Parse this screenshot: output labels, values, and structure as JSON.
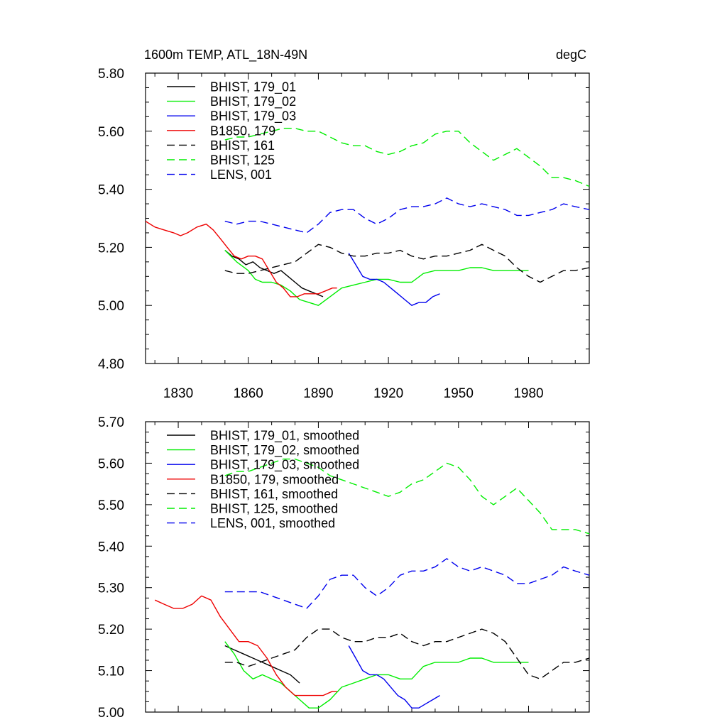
{
  "chart_data": [
    {
      "type": "line",
      "title": "1600m TEMP, ATL_18N-49N",
      "units": "degC",
      "xlabel": "",
      "ylabel": "",
      "xlim": [
        1816,
        2006
      ],
      "ylim": [
        4.8,
        5.8
      ],
      "xticks": [
        1830,
        1860,
        1890,
        1920,
        1950,
        1980
      ],
      "xtick_labels": [
        "1830",
        "1860",
        "1890",
        "1920",
        "1950",
        "1980"
      ],
      "yticks": [
        4.8,
        5.0,
        5.2,
        5.4,
        5.6,
        5.8
      ],
      "ytick_labels": [
        "4.80",
        "5.00",
        "5.20",
        "5.40",
        "5.60",
        "5.80"
      ],
      "legend_position": "top-left",
      "series": [
        {
          "name": "BHIST, 179_01",
          "color": "#000000",
          "dash": "solid",
          "x": [
            1850,
            1853,
            1856,
            1859,
            1862,
            1865,
            1868,
            1871,
            1874,
            1877,
            1880,
            1883,
            1886,
            1889,
            1892
          ],
          "values": [
            5.19,
            5.17,
            5.16,
            5.14,
            5.15,
            5.13,
            5.12,
            5.11,
            5.12,
            5.1,
            5.08,
            5.06,
            5.05,
            5.04,
            5.03
          ]
        },
        {
          "name": "BHIST, 179_02",
          "color": "#00ee00",
          "dash": "solid",
          "x": [
            1850,
            1855,
            1860,
            1863,
            1866,
            1870,
            1874,
            1878,
            1882,
            1886,
            1890,
            1895,
            1900,
            1905,
            1910,
            1915,
            1920,
            1925,
            1930,
            1935,
            1940,
            1945,
            1950,
            1955,
            1960,
            1965,
            1970,
            1975,
            1980
          ],
          "values": [
            5.19,
            5.15,
            5.12,
            5.09,
            5.08,
            5.08,
            5.07,
            5.05,
            5.02,
            5.01,
            5.0,
            5.03,
            5.06,
            5.07,
            5.08,
            5.09,
            5.09,
            5.08,
            5.08,
            5.11,
            5.12,
            5.12,
            5.12,
            5.13,
            5.13,
            5.12,
            5.12,
            5.12,
            5.12
          ]
        },
        {
          "name": "BHIST, 179_03",
          "color": "#0000ee",
          "dash": "solid",
          "x": [
            1903,
            1906,
            1909,
            1912,
            1915,
            1918,
            1921,
            1924,
            1927,
            1930,
            1933,
            1936,
            1939,
            1942
          ],
          "values": [
            5.18,
            5.14,
            5.1,
            5.09,
            5.09,
            5.08,
            5.06,
            5.04,
            5.02,
            5.0,
            5.01,
            5.01,
            5.03,
            5.04
          ]
        },
        {
          "name": "B1850, 179",
          "color": "#ee0000",
          "dash": "solid",
          "x": [
            1816,
            1820,
            1824,
            1828,
            1831,
            1834,
            1838,
            1842,
            1845,
            1848,
            1851,
            1854,
            1857,
            1860,
            1863,
            1866,
            1869,
            1872,
            1875,
            1878,
            1881,
            1884,
            1887,
            1890,
            1893,
            1896,
            1898
          ],
          "values": [
            5.29,
            5.27,
            5.26,
            5.25,
            5.24,
            5.25,
            5.27,
            5.28,
            5.26,
            5.23,
            5.2,
            5.17,
            5.16,
            5.17,
            5.17,
            5.16,
            5.12,
            5.08,
            5.06,
            5.03,
            5.03,
            5.04,
            5.04,
            5.04,
            5.05,
            5.06,
            5.06
          ]
        },
        {
          "name": "BHIST, 161",
          "color": "#000000",
          "dash": "dashed",
          "x": [
            1850,
            1855,
            1860,
            1865,
            1870,
            1875,
            1880,
            1885,
            1890,
            1895,
            1900,
            1905,
            1910,
            1915,
            1920,
            1925,
            1930,
            1935,
            1940,
            1945,
            1950,
            1955,
            1960,
            1965,
            1970,
            1975,
            1980,
            1985,
            1990,
            1995,
            2000,
            2006
          ],
          "values": [
            5.12,
            5.11,
            5.11,
            5.12,
            5.13,
            5.14,
            5.15,
            5.18,
            5.21,
            5.2,
            5.18,
            5.17,
            5.17,
            5.18,
            5.18,
            5.19,
            5.17,
            5.16,
            5.17,
            5.17,
            5.18,
            5.19,
            5.21,
            5.19,
            5.17,
            5.13,
            5.1,
            5.08,
            5.1,
            5.12,
            5.12,
            5.13
          ]
        },
        {
          "name": "BHIST, 125",
          "color": "#00ee00",
          "dash": "dashed",
          "x": [
            1850,
            1855,
            1860,
            1865,
            1870,
            1875,
            1880,
            1885,
            1890,
            1895,
            1900,
            1905,
            1910,
            1915,
            1920,
            1925,
            1930,
            1935,
            1940,
            1945,
            1950,
            1955,
            1960,
            1965,
            1970,
            1975,
            1980,
            1985,
            1990,
            1995,
            2000,
            2006
          ],
          "values": [
            5.57,
            5.58,
            5.58,
            5.59,
            5.6,
            5.61,
            5.61,
            5.6,
            5.6,
            5.58,
            5.56,
            5.55,
            5.55,
            5.53,
            5.52,
            5.53,
            5.55,
            5.56,
            5.59,
            5.6,
            5.6,
            5.56,
            5.53,
            5.5,
            5.52,
            5.54,
            5.51,
            5.48,
            5.44,
            5.44,
            5.43,
            5.41
          ]
        },
        {
          "name": "LENS, 001",
          "color": "#0000ee",
          "dash": "dashed",
          "x": [
            1850,
            1855,
            1860,
            1865,
            1870,
            1875,
            1880,
            1885,
            1890,
            1895,
            1900,
            1905,
            1910,
            1915,
            1920,
            1925,
            1930,
            1935,
            1940,
            1945,
            1950,
            1955,
            1960,
            1965,
            1970,
            1975,
            1980,
            1985,
            1990,
            1995,
            2000,
            2006
          ],
          "values": [
            5.29,
            5.28,
            5.29,
            5.29,
            5.28,
            5.27,
            5.26,
            5.25,
            5.28,
            5.32,
            5.33,
            5.33,
            5.3,
            5.28,
            5.3,
            5.33,
            5.34,
            5.34,
            5.35,
            5.37,
            5.35,
            5.34,
            5.35,
            5.34,
            5.33,
            5.31,
            5.31,
            5.32,
            5.33,
            5.35,
            5.34,
            5.33
          ]
        }
      ]
    },
    {
      "type": "line",
      "title": "",
      "xlabel": "",
      "ylabel": "",
      "xlim": [
        1816,
        2006
      ],
      "ylim": [
        5.0,
        5.7
      ],
      "xticks": [
        1830,
        1860,
        1890,
        1920,
        1950,
        1980
      ],
      "yticks": [
        5.0,
        5.1,
        5.2,
        5.3,
        5.4,
        5.5,
        5.6,
        5.7
      ],
      "ytick_labels": [
        "5.00",
        "5.10",
        "5.20",
        "5.30",
        "5.40",
        "5.50",
        "5.60",
        "5.70"
      ],
      "legend_position": "top-left",
      "series": [
        {
          "name": "BHIST, 179_01, smoothed",
          "color": "#000000",
          "dash": "solid",
          "x": [
            1850,
            1854,
            1858,
            1862,
            1866,
            1870,
            1874,
            1878,
            1882
          ],
          "values": [
            5.16,
            5.15,
            5.14,
            5.13,
            5.12,
            5.11,
            5.1,
            5.09,
            5.07
          ]
        },
        {
          "name": "BHIST, 179_02, smoothed",
          "color": "#00ee00",
          "dash": "solid",
          "x": [
            1850,
            1854,
            1858,
            1862,
            1866,
            1870,
            1874,
            1878,
            1882,
            1886,
            1890,
            1895,
            1900,
            1905,
            1910,
            1915,
            1920,
            1925,
            1930,
            1935,
            1940,
            1945,
            1950,
            1955,
            1960,
            1965,
            1970,
            1975,
            1980
          ],
          "values": [
            5.17,
            5.14,
            5.1,
            5.08,
            5.09,
            5.08,
            5.07,
            5.05,
            5.03,
            5.01,
            5.01,
            5.03,
            5.06,
            5.07,
            5.08,
            5.09,
            5.09,
            5.08,
            5.08,
            5.11,
            5.12,
            5.12,
            5.12,
            5.13,
            5.13,
            5.12,
            5.12,
            5.12,
            5.12
          ]
        },
        {
          "name": "BHIST, 179_03, smoothed",
          "color": "#0000ee",
          "dash": "solid",
          "x": [
            1903,
            1906,
            1909,
            1912,
            1915,
            1918,
            1921,
            1924,
            1927,
            1930,
            1933,
            1936,
            1939,
            1942
          ],
          "values": [
            5.16,
            5.13,
            5.1,
            5.09,
            5.09,
            5.08,
            5.06,
            5.04,
            5.03,
            5.01,
            5.01,
            5.02,
            5.03,
            5.04
          ]
        },
        {
          "name": "B1850, 179, smoothed",
          "color": "#ee0000",
          "dash": "solid",
          "x": [
            1820,
            1824,
            1828,
            1832,
            1836,
            1840,
            1844,
            1848,
            1852,
            1856,
            1860,
            1864,
            1868,
            1872,
            1876,
            1880,
            1884,
            1888,
            1892,
            1896,
            1898
          ],
          "values": [
            5.27,
            5.26,
            5.25,
            5.25,
            5.26,
            5.28,
            5.27,
            5.23,
            5.2,
            5.17,
            5.17,
            5.16,
            5.13,
            5.09,
            5.06,
            5.04,
            5.04,
            5.04,
            5.04,
            5.05,
            5.05
          ]
        },
        {
          "name": "BHIST, 161, smoothed",
          "color": "#000000",
          "dash": "dashed",
          "x": [
            1850,
            1855,
            1860,
            1865,
            1870,
            1875,
            1880,
            1885,
            1890,
            1895,
            1900,
            1905,
            1910,
            1915,
            1920,
            1925,
            1930,
            1935,
            1940,
            1945,
            1950,
            1955,
            1960,
            1965,
            1970,
            1975,
            1980,
            1985,
            1990,
            1995,
            2000,
            2006
          ],
          "values": [
            5.12,
            5.12,
            5.11,
            5.12,
            5.13,
            5.14,
            5.15,
            5.18,
            5.2,
            5.2,
            5.18,
            5.17,
            5.17,
            5.18,
            5.18,
            5.19,
            5.17,
            5.16,
            5.17,
            5.17,
            5.18,
            5.19,
            5.2,
            5.19,
            5.17,
            5.13,
            5.09,
            5.08,
            5.1,
            5.12,
            5.12,
            5.13
          ]
        },
        {
          "name": "BHIST, 125, smoothed",
          "color": "#00ee00",
          "dash": "dashed",
          "x": [
            1850,
            1855,
            1860,
            1865,
            1870,
            1875,
            1880,
            1885,
            1890,
            1895,
            1900,
            1905,
            1910,
            1915,
            1920,
            1925,
            1930,
            1935,
            1940,
            1945,
            1950,
            1955,
            1960,
            1965,
            1970,
            1975,
            1980,
            1985,
            1990,
            1995,
            2000,
            2006
          ],
          "values": [
            5.57,
            5.58,
            5.58,
            5.59,
            5.6,
            5.61,
            5.61,
            5.6,
            5.59,
            5.57,
            5.56,
            5.55,
            5.54,
            5.53,
            5.52,
            5.53,
            5.55,
            5.56,
            5.58,
            5.6,
            5.59,
            5.56,
            5.52,
            5.5,
            5.52,
            5.54,
            5.51,
            5.48,
            5.44,
            5.44,
            5.44,
            5.43
          ]
        },
        {
          "name": "LENS, 001, smoothed",
          "color": "#0000ee",
          "dash": "dashed",
          "x": [
            1850,
            1855,
            1860,
            1865,
            1870,
            1875,
            1880,
            1885,
            1890,
            1895,
            1900,
            1905,
            1910,
            1915,
            1920,
            1925,
            1930,
            1935,
            1940,
            1945,
            1950,
            1955,
            1960,
            1965,
            1970,
            1975,
            1980,
            1985,
            1990,
            1995,
            2000,
            2006
          ],
          "values": [
            5.29,
            5.29,
            5.29,
            5.29,
            5.28,
            5.27,
            5.26,
            5.25,
            5.28,
            5.32,
            5.33,
            5.33,
            5.3,
            5.28,
            5.3,
            5.33,
            5.34,
            5.34,
            5.35,
            5.37,
            5.35,
            5.34,
            5.35,
            5.34,
            5.33,
            5.31,
            5.31,
            5.32,
            5.33,
            5.35,
            5.34,
            5.33
          ]
        }
      ]
    }
  ]
}
